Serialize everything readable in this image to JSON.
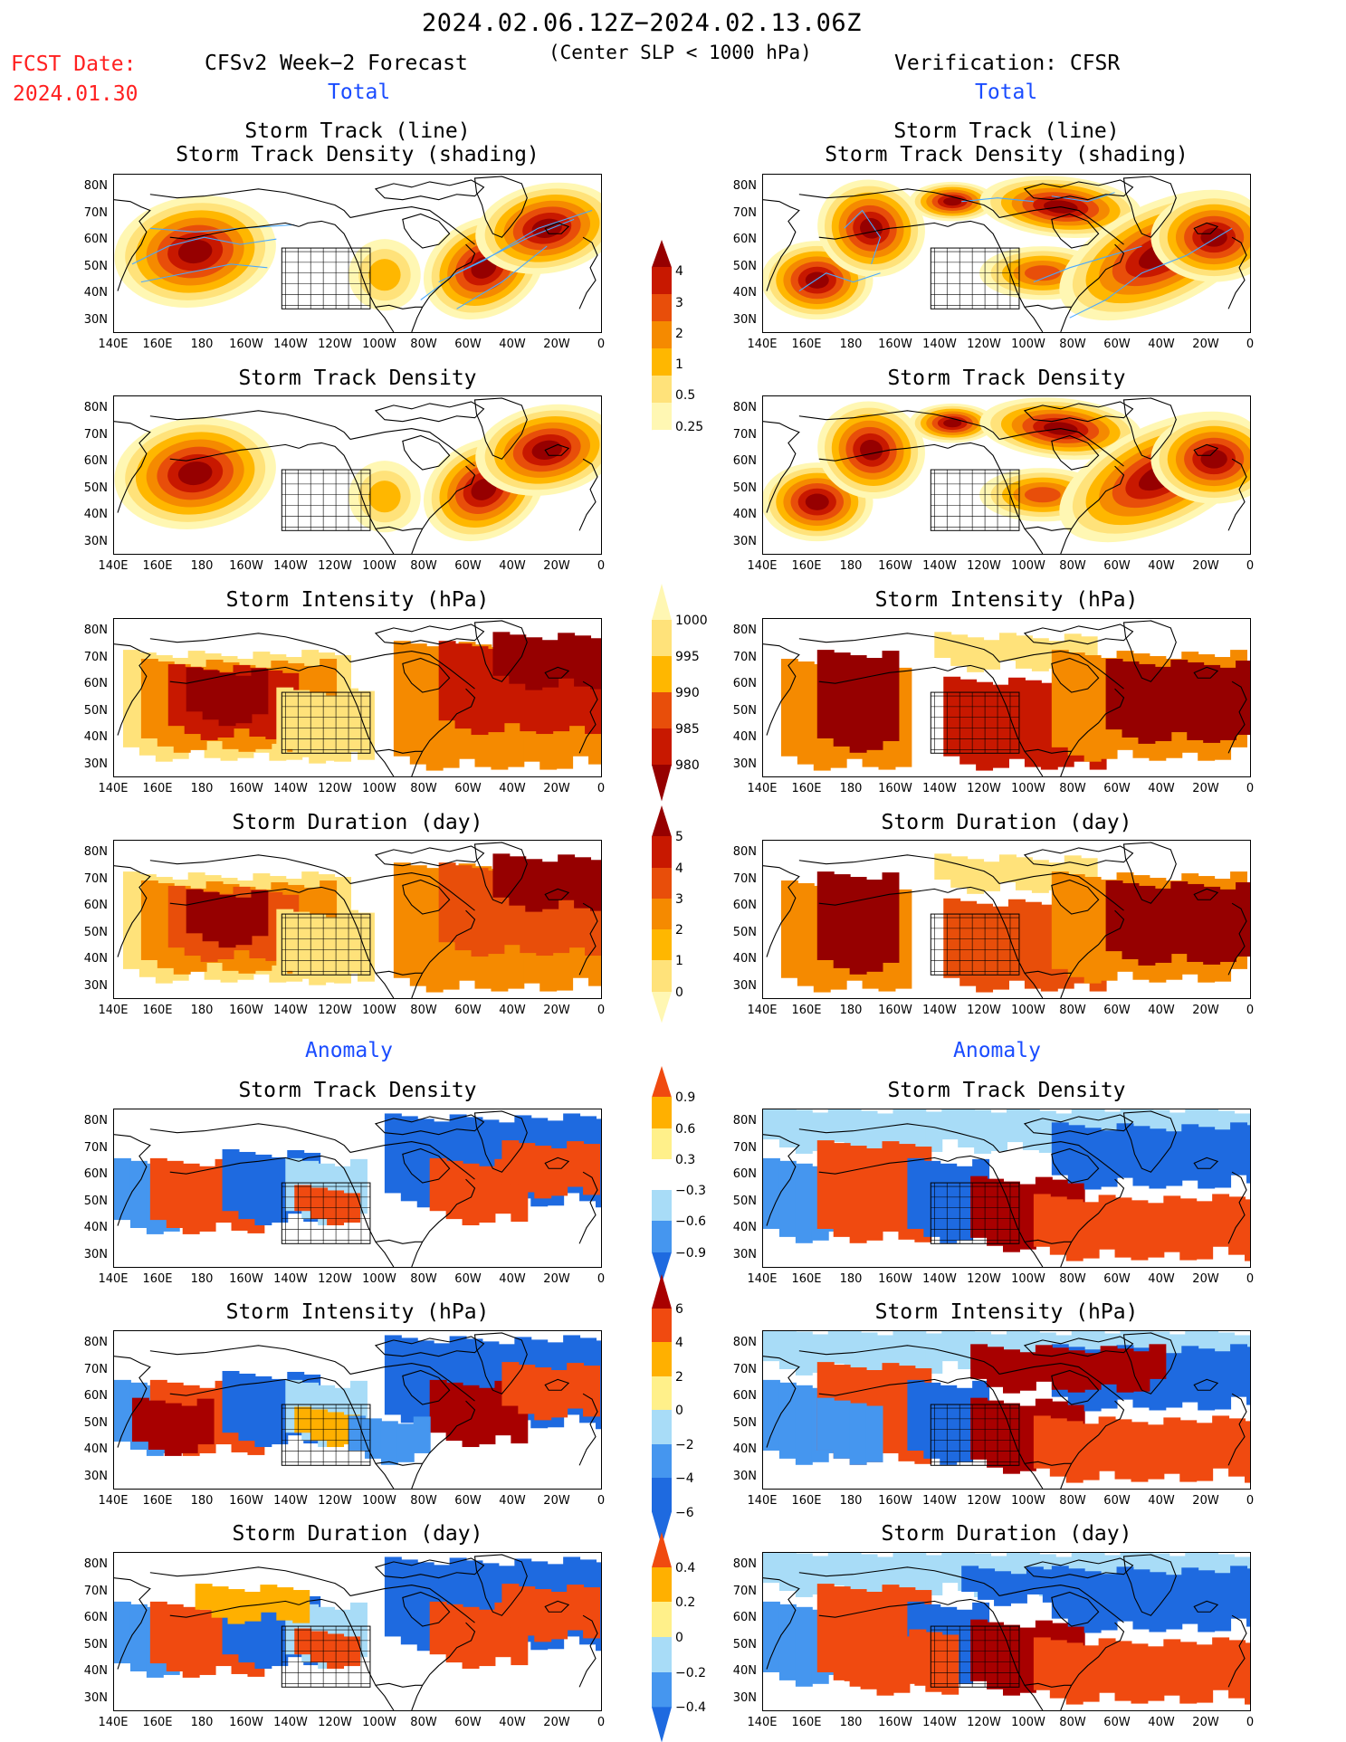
{
  "header": {
    "period": "2024.02.06.12Z−2024.02.13.06Z",
    "criterion": "(Center SLP < 1000 hPa)",
    "fcst_label": "FCST Date:",
    "fcst_date": "2024.01.30",
    "left_model": "CFSv2 Week−2 Forecast",
    "right_model": "Verification: CFSR",
    "total_label": "Total",
    "anomaly_label": "Anomaly"
  },
  "panel_titles": {
    "track_line": "Storm Track (line)",
    "track_density_shading": "Storm Track Density (shading)",
    "track_density": "Storm Track Density",
    "intensity": "Storm Intensity (hPa)",
    "duration": "Storm Duration (day)"
  },
  "axes": {
    "lat_ticks": [
      "80N",
      "70N",
      "60N",
      "50N",
      "40N",
      "30N"
    ],
    "lon_ticks": [
      "140E",
      "160E",
      "180",
      "160W",
      "140W",
      "120W",
      "100W",
      "80W",
      "60W",
      "40W",
      "20W",
      "0"
    ]
  },
  "colorbars": {
    "density_total": [
      "4",
      "3",
      "2",
      "1",
      "0.5",
      "0.25"
    ],
    "intensity_total": [
      "1000",
      "995",
      "990",
      "985",
      "980"
    ],
    "duration_total": [
      "5",
      "4",
      "3",
      "2",
      "1",
      "0"
    ],
    "density_anom": [
      "0.9",
      "0.6",
      "0.3",
      "−0.3",
      "−0.6",
      "−0.9"
    ],
    "intensity_anom": [
      "6",
      "4",
      "2",
      "0",
      "−2",
      "−4",
      "−6"
    ],
    "duration_anom": [
      "0.4",
      "0.2",
      "0",
      "−0.2",
      "−0.4"
    ]
  },
  "colors": {
    "total_scale": [
      "#fff7b3",
      "#ffe27a",
      "#ffb700",
      "#f58a00",
      "#e84e0a",
      "#c81800",
      "#960000"
    ],
    "anom_scale": [
      "#1e6ae0",
      "#4596ef",
      "#a8dcf7",
      "#ffffff",
      "#fff08a",
      "#ffb000",
      "#f04a10",
      "#a80000"
    ],
    "track_line": "#48a8ff"
  }
}
